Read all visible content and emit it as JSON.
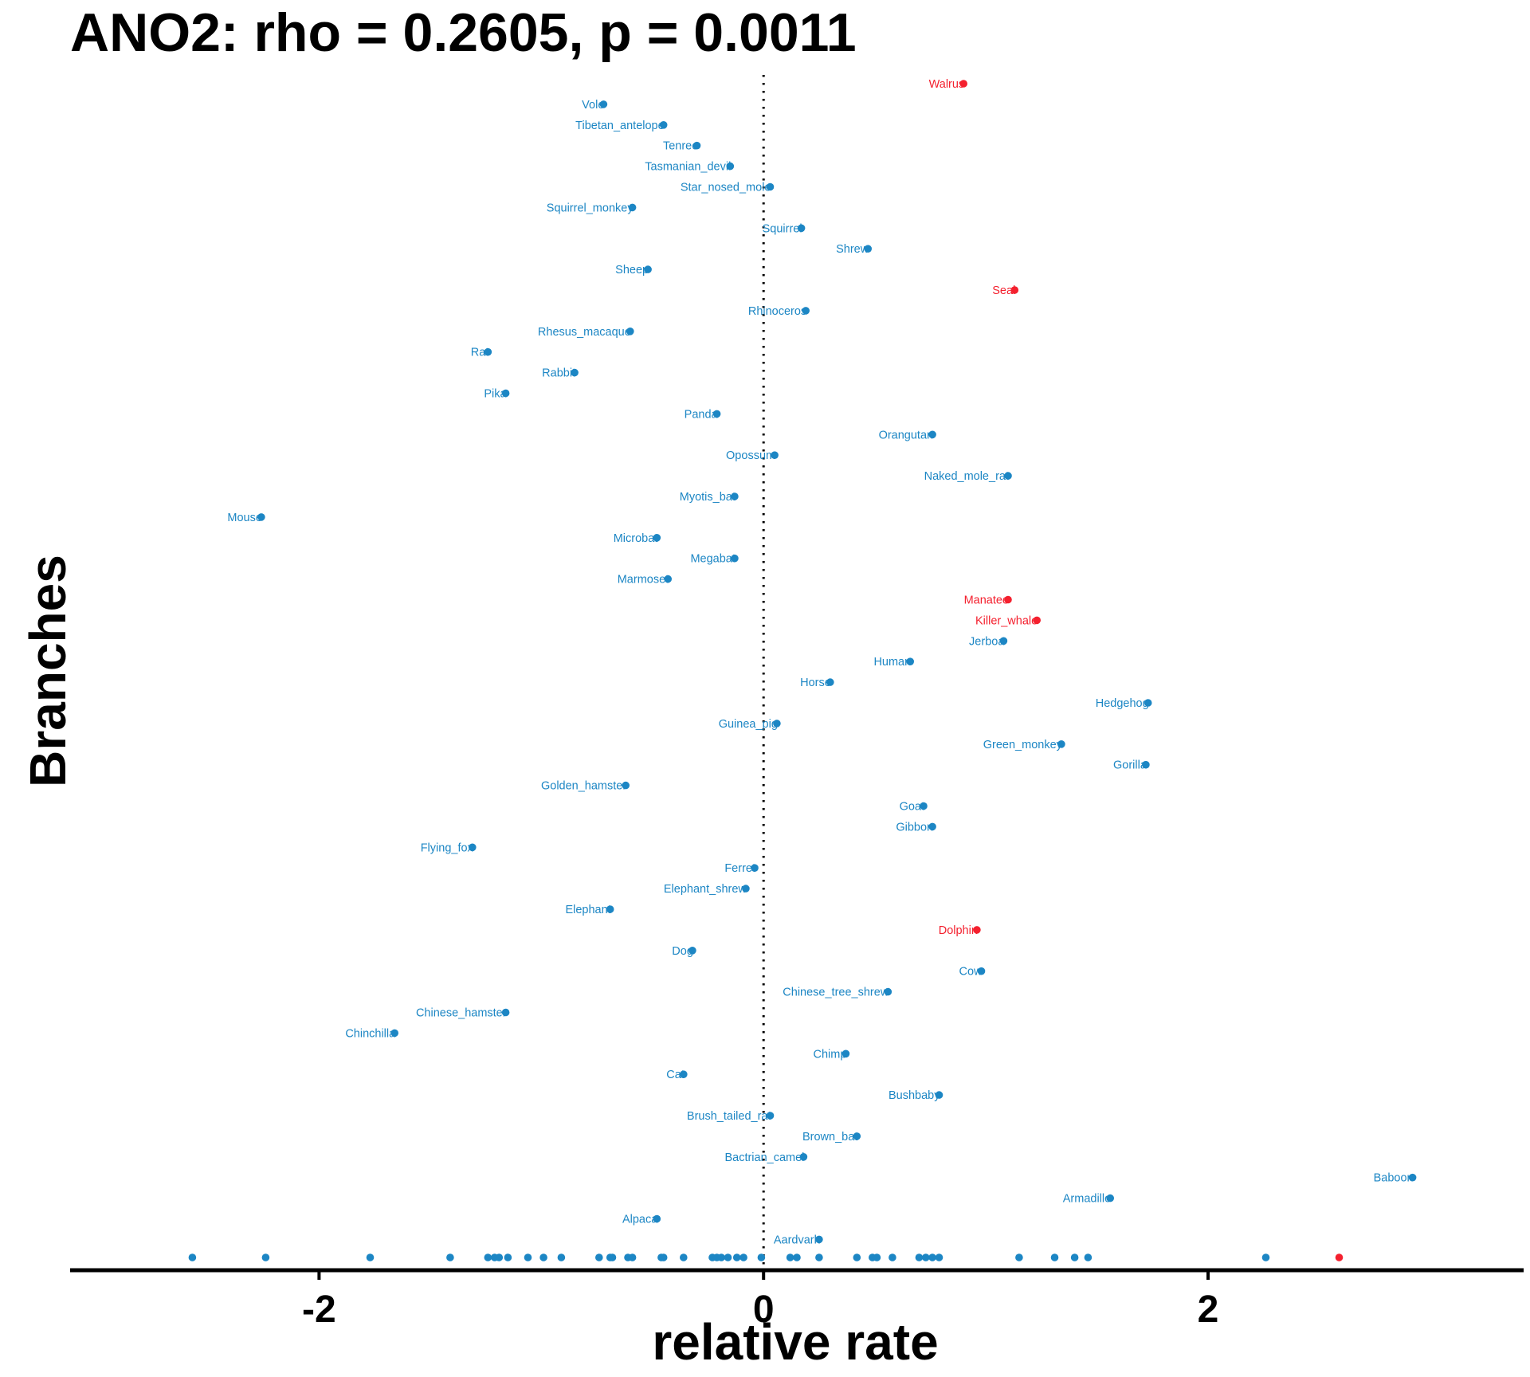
{
  "chart_data": {
    "type": "scatter",
    "title": "ANO2: rho = 0.2605, p = 0.0011",
    "xlabel": "relative rate",
    "ylabel": "Branches",
    "xlim": [
      -3.12,
      3.42
    ],
    "xticks": [
      -2,
      0,
      2
    ],
    "xtick_labels": [
      "-2",
      "0",
      "2"
    ],
    "reference_line": {
      "x": 0,
      "style": "dotted"
    },
    "grid": false,
    "colors": {
      "foreground": "#1c86c4",
      "marine": "#f4202e",
      "axis": "#000000"
    },
    "categories": [
      "blue",
      "red"
    ],
    "points": [
      {
        "label": "Walrus",
        "x": 0.9,
        "group": "red"
      },
      {
        "label": "Vole",
        "x": -0.72,
        "group": "blue"
      },
      {
        "label": "Tibetan_antelope",
        "x": -0.45,
        "group": "blue"
      },
      {
        "label": "Tenrec",
        "x": -0.3,
        "group": "blue"
      },
      {
        "label": "Tasmanian_devil",
        "x": -0.15,
        "group": "blue"
      },
      {
        "label": "Star_nosed_mole",
        "x": 0.03,
        "group": "blue"
      },
      {
        "label": "Squirrel_monkey",
        "x": -0.59,
        "group": "blue"
      },
      {
        "label": "Squirrel",
        "x": 0.17,
        "group": "blue"
      },
      {
        "label": "Shrew",
        "x": 0.47,
        "group": "blue"
      },
      {
        "label": "Sheep",
        "x": -0.52,
        "group": "blue"
      },
      {
        "label": "Seal",
        "x": 1.13,
        "group": "red"
      },
      {
        "label": "Rhinoceros",
        "x": 0.19,
        "group": "blue"
      },
      {
        "label": "Rhesus_macaque",
        "x": -0.6,
        "group": "blue"
      },
      {
        "label": "Rat",
        "x": -1.24,
        "group": "blue"
      },
      {
        "label": "Rabbit",
        "x": -0.85,
        "group": "blue"
      },
      {
        "label": "Pika",
        "x": -1.16,
        "group": "blue"
      },
      {
        "label": "Panda",
        "x": -0.21,
        "group": "blue"
      },
      {
        "label": "Orangutan",
        "x": 0.76,
        "group": "blue"
      },
      {
        "label": "Opossum",
        "x": 0.05,
        "group": "blue"
      },
      {
        "label": "Naked_mole_rat",
        "x": 1.1,
        "group": "blue"
      },
      {
        "label": "Myotis_bat",
        "x": -0.13,
        "group": "blue"
      },
      {
        "label": "Mouse",
        "x": -2.26,
        "group": "blue"
      },
      {
        "label": "Microbat",
        "x": -0.48,
        "group": "blue"
      },
      {
        "label": "Megabat",
        "x": -0.13,
        "group": "blue"
      },
      {
        "label": "Marmoset",
        "x": -0.43,
        "group": "blue"
      },
      {
        "label": "Manatee",
        "x": 1.1,
        "group": "red"
      },
      {
        "label": "Killer_whale",
        "x": 1.23,
        "group": "red"
      },
      {
        "label": "Jerboa",
        "x": 1.08,
        "group": "blue"
      },
      {
        "label": "Human",
        "x": 0.66,
        "group": "blue"
      },
      {
        "label": "Horse",
        "x": 0.3,
        "group": "blue"
      },
      {
        "label": "Hedgehog",
        "x": 1.73,
        "group": "blue"
      },
      {
        "label": "Guinea_pig",
        "x": 0.06,
        "group": "blue"
      },
      {
        "label": "Green_monkey",
        "x": 1.34,
        "group": "blue"
      },
      {
        "label": "Gorilla",
        "x": 1.72,
        "group": "blue"
      },
      {
        "label": "Golden_hamster",
        "x": -0.62,
        "group": "blue"
      },
      {
        "label": "Goat",
        "x": 0.72,
        "group": "blue"
      },
      {
        "label": "Gibbon",
        "x": 0.76,
        "group": "blue"
      },
      {
        "label": "Flying_fox",
        "x": -1.31,
        "group": "blue"
      },
      {
        "label": "Ferret",
        "x": -0.04,
        "group": "blue"
      },
      {
        "label": "Elephant_shrew",
        "x": -0.08,
        "group": "blue"
      },
      {
        "label": "Elephant",
        "x": -0.69,
        "group": "blue"
      },
      {
        "label": "Dolphin",
        "x": 0.96,
        "group": "red"
      },
      {
        "label": "Dog",
        "x": -0.32,
        "group": "blue"
      },
      {
        "label": "Cow",
        "x": 0.98,
        "group": "blue"
      },
      {
        "label": "Chinese_tree_shrew",
        "x": 0.56,
        "group": "blue"
      },
      {
        "label": "Chinese_hamster",
        "x": -1.16,
        "group": "blue"
      },
      {
        "label": "Chinchilla",
        "x": -1.66,
        "group": "blue"
      },
      {
        "label": "Chimp",
        "x": 0.37,
        "group": "blue"
      },
      {
        "label": "Cat",
        "x": -0.36,
        "group": "blue"
      },
      {
        "label": "Bushbaby",
        "x": 0.79,
        "group": "blue"
      },
      {
        "label": "Brush_tailed_rat",
        "x": 0.03,
        "group": "blue"
      },
      {
        "label": "Brown_bat",
        "x": 0.42,
        "group": "blue"
      },
      {
        "label": "Bactrian_camel",
        "x": 0.18,
        "group": "blue"
      },
      {
        "label": "Baboon",
        "x": 2.92,
        "group": "blue"
      },
      {
        "label": "Armadillo",
        "x": 1.56,
        "group": "blue"
      },
      {
        "label": "Alpaca",
        "x": -0.48,
        "group": "blue"
      },
      {
        "label": "Aardvark",
        "x": 0.25,
        "group": "blue"
      }
    ],
    "rug": [
      {
        "x": -2.57,
        "group": "blue"
      },
      {
        "x": -2.24,
        "group": "blue"
      },
      {
        "x": -1.77,
        "group": "blue"
      },
      {
        "x": -1.41,
        "group": "blue"
      },
      {
        "x": -1.24,
        "group": "blue"
      },
      {
        "x": -1.21,
        "group": "blue"
      },
      {
        "x": -1.19,
        "group": "blue"
      },
      {
        "x": -1.15,
        "group": "blue"
      },
      {
        "x": -1.06,
        "group": "blue"
      },
      {
        "x": -0.99,
        "group": "blue"
      },
      {
        "x": -0.91,
        "group": "blue"
      },
      {
        "x": -0.74,
        "group": "blue"
      },
      {
        "x": -0.69,
        "group": "blue"
      },
      {
        "x": -0.68,
        "group": "blue"
      },
      {
        "x": -0.61,
        "group": "blue"
      },
      {
        "x": -0.59,
        "group": "blue"
      },
      {
        "x": -0.46,
        "group": "blue"
      },
      {
        "x": -0.45,
        "group": "blue"
      },
      {
        "x": -0.36,
        "group": "blue"
      },
      {
        "x": -0.23,
        "group": "blue"
      },
      {
        "x": -0.21,
        "group": "blue"
      },
      {
        "x": -0.19,
        "group": "blue"
      },
      {
        "x": -0.16,
        "group": "blue"
      },
      {
        "x": -0.12,
        "group": "blue"
      },
      {
        "x": -0.09,
        "group": "blue"
      },
      {
        "x": -0.01,
        "group": "blue"
      },
      {
        "x": 0.12,
        "group": "blue"
      },
      {
        "x": 0.15,
        "group": "blue"
      },
      {
        "x": 0.25,
        "group": "blue"
      },
      {
        "x": 0.42,
        "group": "blue"
      },
      {
        "x": 0.49,
        "group": "blue"
      },
      {
        "x": 0.51,
        "group": "blue"
      },
      {
        "x": 0.58,
        "group": "blue"
      },
      {
        "x": 0.7,
        "group": "blue"
      },
      {
        "x": 0.73,
        "group": "blue"
      },
      {
        "x": 0.76,
        "group": "blue"
      },
      {
        "x": 0.79,
        "group": "blue"
      },
      {
        "x": 1.15,
        "group": "blue"
      },
      {
        "x": 1.31,
        "group": "blue"
      },
      {
        "x": 1.4,
        "group": "blue"
      },
      {
        "x": 1.46,
        "group": "blue"
      },
      {
        "x": 2.26,
        "group": "blue"
      },
      {
        "x": 2.59,
        "group": "red"
      }
    ]
  }
}
